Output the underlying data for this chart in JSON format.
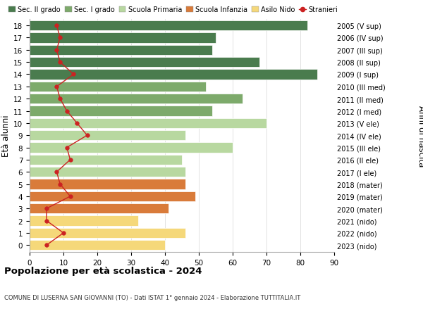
{
  "ages": [
    18,
    17,
    16,
    15,
    14,
    13,
    12,
    11,
    10,
    9,
    8,
    7,
    6,
    5,
    4,
    3,
    2,
    1,
    0
  ],
  "right_labels": [
    "2005 (V sup)",
    "2006 (IV sup)",
    "2007 (III sup)",
    "2008 (II sup)",
    "2009 (I sup)",
    "2010 (III med)",
    "2011 (II med)",
    "2012 (I med)",
    "2013 (V ele)",
    "2014 (IV ele)",
    "2015 (III ele)",
    "2016 (II ele)",
    "2017 (I ele)",
    "2018 (mater)",
    "2019 (mater)",
    "2020 (mater)",
    "2021 (nido)",
    "2022 (nido)",
    "2023 (nido)"
  ],
  "bar_values": [
    82,
    55,
    54,
    68,
    85,
    52,
    63,
    54,
    70,
    46,
    60,
    45,
    46,
    46,
    49,
    41,
    32,
    46,
    40
  ],
  "bar_colors": [
    "#4a7c4e",
    "#4a7c4e",
    "#4a7c4e",
    "#4a7c4e",
    "#4a7c4e",
    "#7daa6b",
    "#7daa6b",
    "#7daa6b",
    "#b8d8a0",
    "#b8d8a0",
    "#b8d8a0",
    "#b8d8a0",
    "#b8d8a0",
    "#d97b3a",
    "#d97b3a",
    "#d97b3a",
    "#f5d87a",
    "#f5d87a",
    "#f5d87a"
  ],
  "stranieri_values": [
    8,
    9,
    8,
    9,
    13,
    8,
    9,
    11,
    14,
    17,
    11,
    12,
    8,
    9,
    12,
    5,
    5,
    10,
    5
  ],
  "legend_labels": [
    "Sec. II grado",
    "Sec. I grado",
    "Scuola Primaria",
    "Scuola Infanzia",
    "Asilo Nido",
    "Stranieri"
  ],
  "legend_colors": [
    "#4a7c4e",
    "#7daa6b",
    "#b8d8a0",
    "#d97b3a",
    "#f5d87a",
    "#cc2222"
  ],
  "ylabel_left": "Età alunni",
  "ylabel_right": "Anni di nascita",
  "xlim": [
    0,
    90
  ],
  "xticks": [
    0,
    10,
    20,
    30,
    40,
    50,
    60,
    70,
    80,
    90
  ],
  "title": "Popolazione per età scolastica - 2024",
  "subtitle": "COMUNE DI LUSERNA SAN GIOVANNI (TO) - Dati ISTAT 1° gennaio 2024 - Elaborazione TUTTITALIA.IT",
  "background_color": "#ffffff",
  "bar_height": 0.82,
  "grid_color": "#dddddd"
}
